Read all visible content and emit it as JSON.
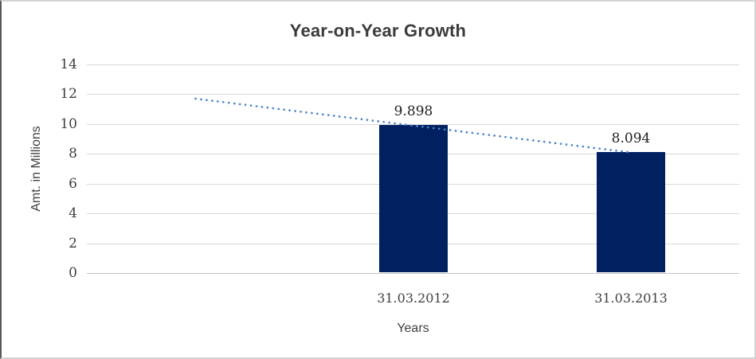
{
  "chart_data": {
    "type": "bar",
    "title": "Year-on-Year Growth",
    "xlabel": "Years",
    "ylabel": "Amt. in Millions",
    "categories": [
      "",
      "31.03.2012",
      "31.03.2013"
    ],
    "values": [
      null,
      9.898,
      8.094
    ],
    "data_labels": [
      "",
      "9.898",
      "8.094"
    ],
    "ylim": [
      0,
      14
    ],
    "ytick_step": 2,
    "yticks": [
      0,
      2,
      4,
      6,
      8,
      10,
      12,
      14
    ],
    "grid": true,
    "legend": "none",
    "colors": {
      "bar": "#002060",
      "trendline": "#4e87cb",
      "gridline": "#d9d9d9",
      "axis_line": "#c3c3c3",
      "title_text": "#3b3b3b",
      "tick_text": "#404040"
    },
    "trendline": {
      "style": "dotted",
      "color": "#4e87cb",
      "points": [
        {
          "category_index": 0,
          "value": 11.7
        },
        {
          "category_index": 2,
          "value": 8.094
        }
      ]
    }
  }
}
